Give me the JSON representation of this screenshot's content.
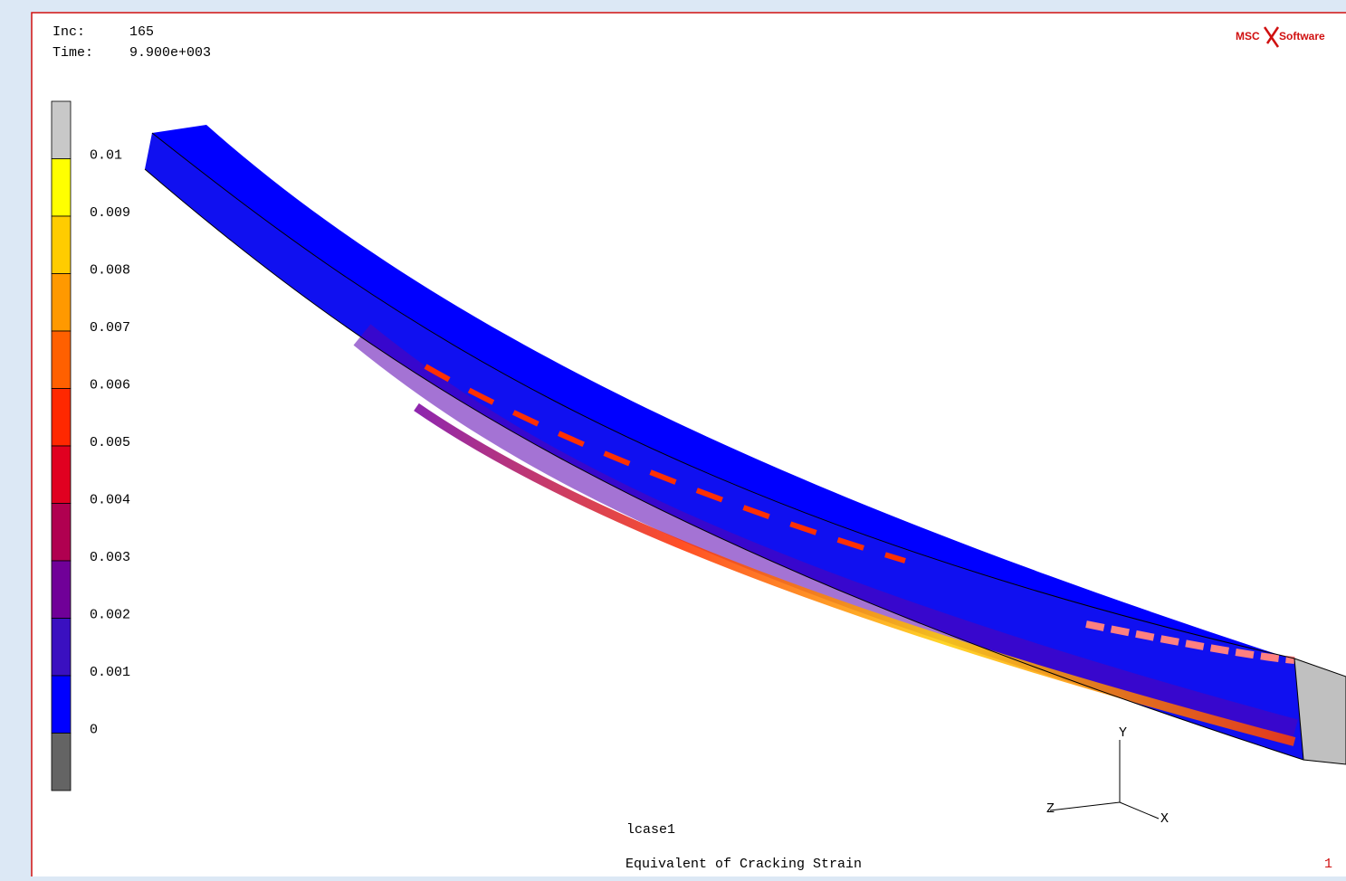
{
  "header": {
    "inc_label": "Inc:",
    "inc": "165",
    "time_label": "Time:",
    "time": "9.900e+003"
  },
  "logo": {
    "left": "MSC",
    "right": "Software"
  },
  "legend": {
    "labels": [
      "0.01",
      "0.009",
      "0.008",
      "0.007",
      "0.006",
      "0.005",
      "0.004",
      "0.003",
      "0.002",
      "0.001",
      "0"
    ]
  },
  "triad": {
    "y": "Y",
    "x": "X",
    "z": "Z"
  },
  "footer": {
    "load_case": "lcase1",
    "title": "Equivalent of Cracking Strain",
    "page": "1"
  }
}
